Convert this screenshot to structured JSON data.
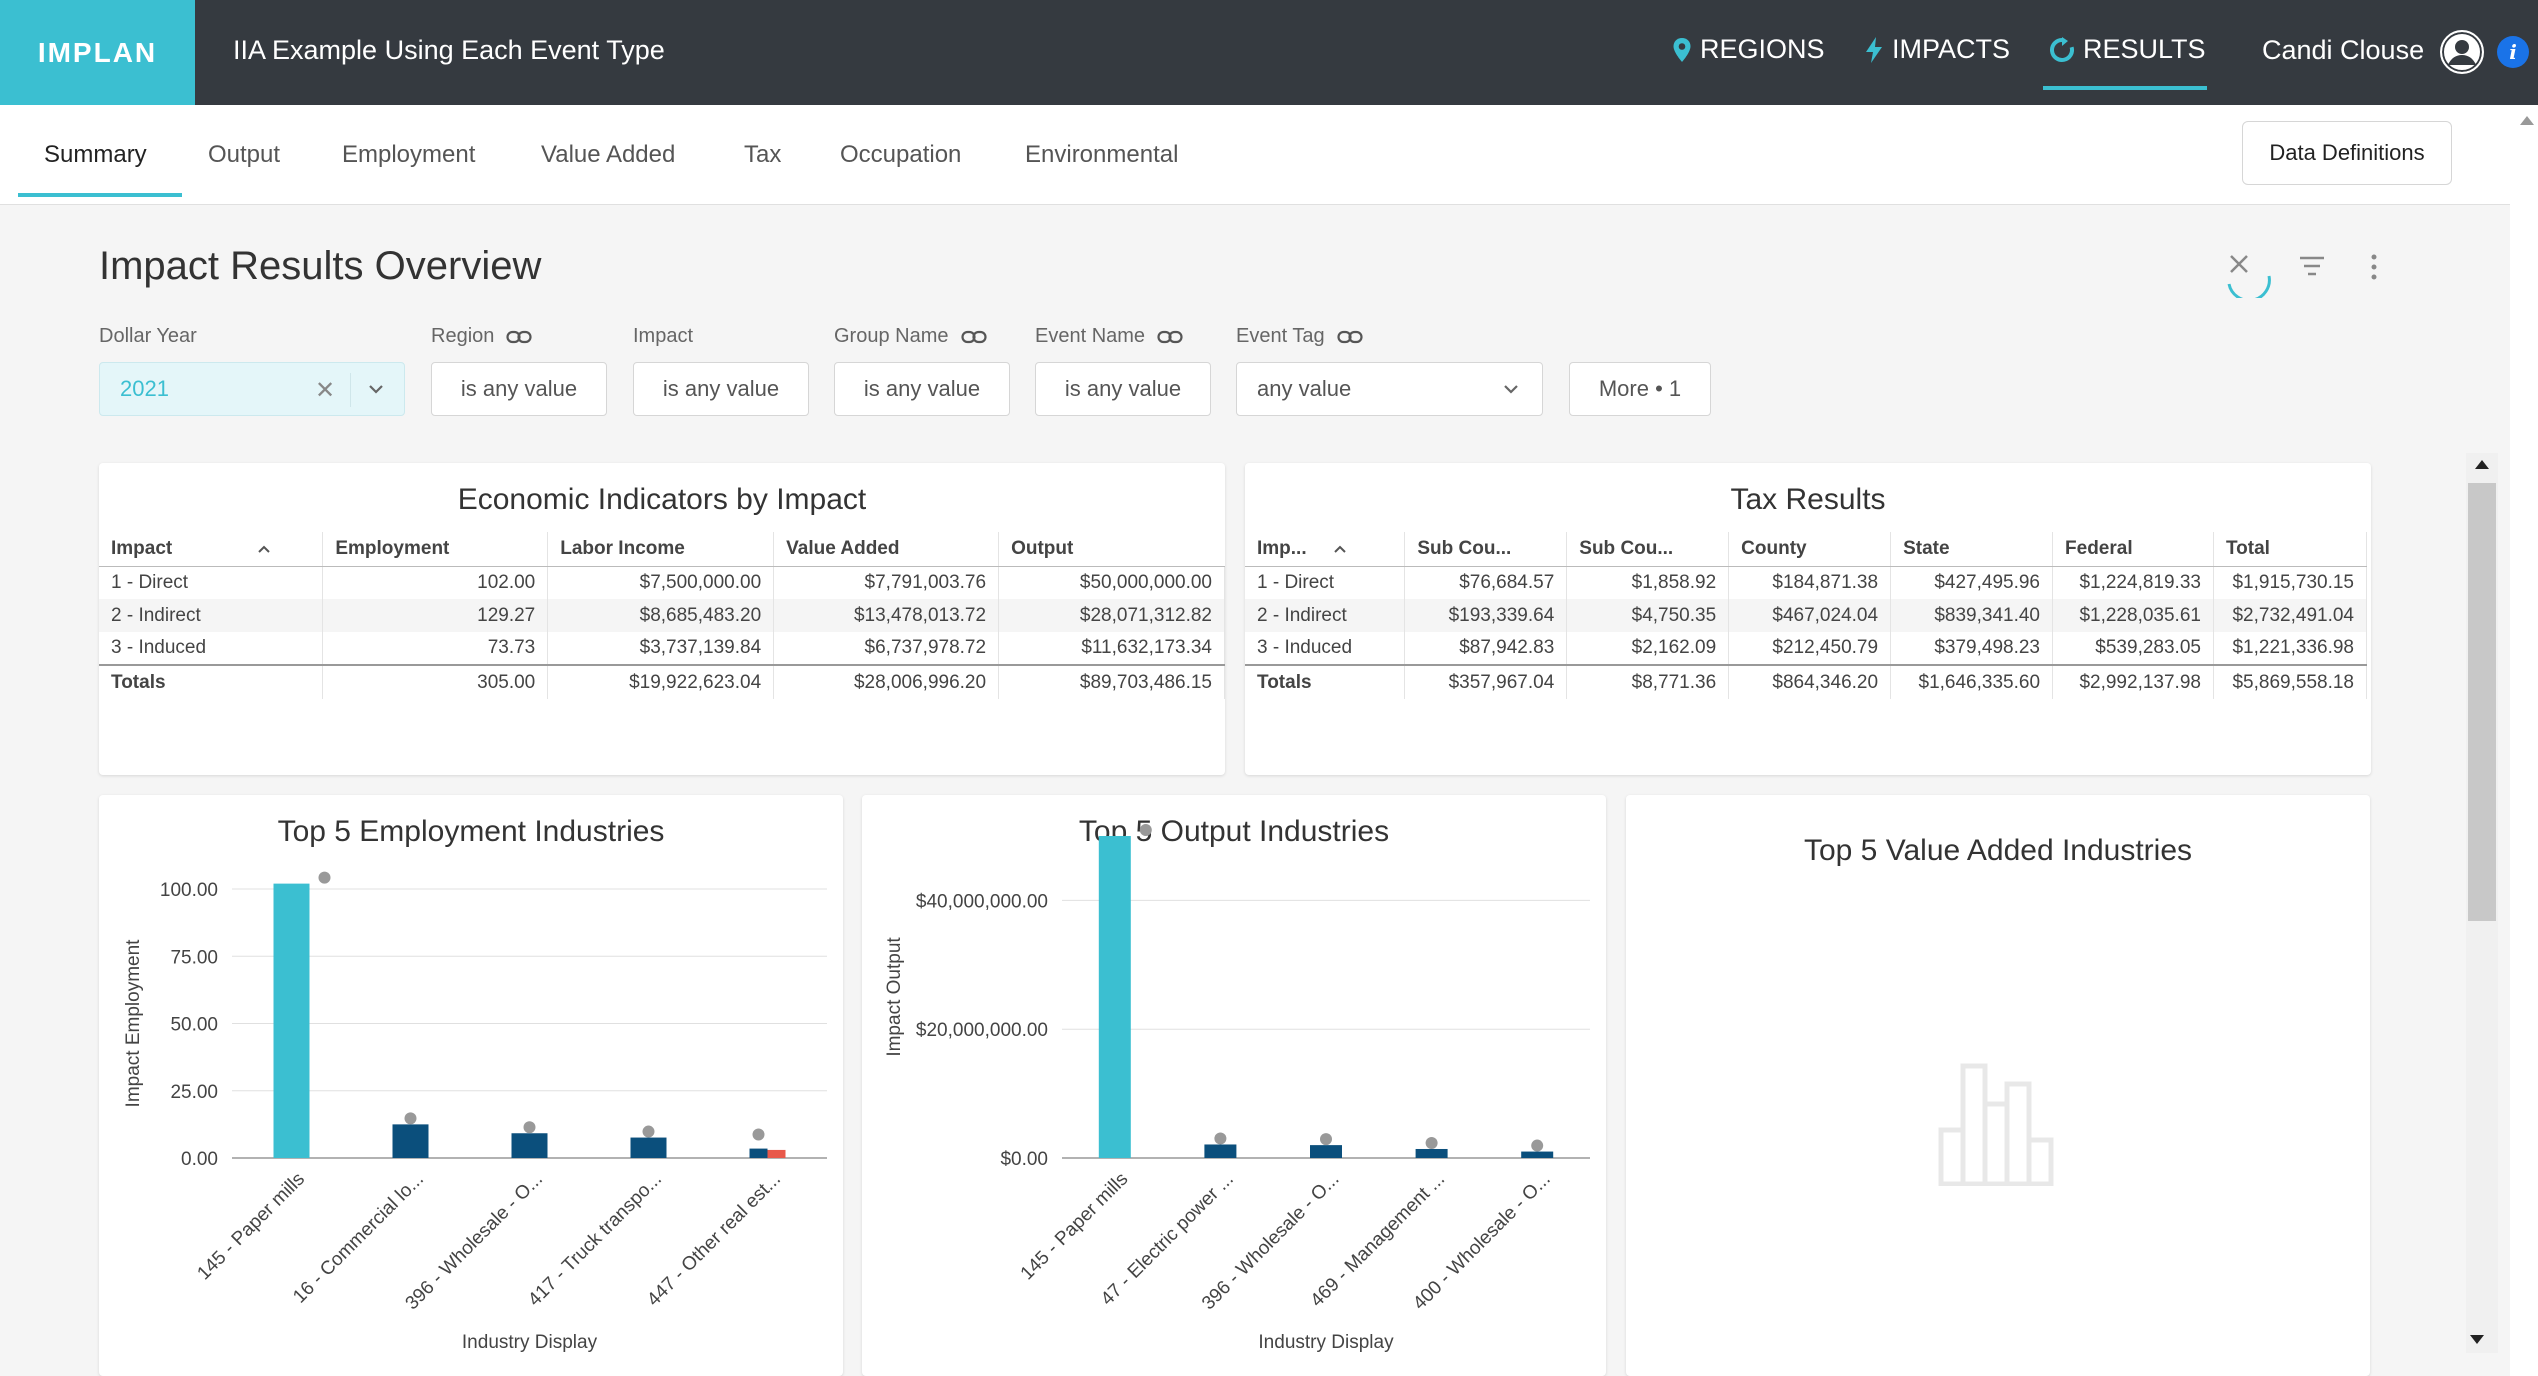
{
  "app": {
    "logo": "IMPLAN",
    "project_title": "IIA Example Using Each Event Type",
    "nav": [
      {
        "label": "REGIONS",
        "icon": "map-pin-icon"
      },
      {
        "label": "IMPACTS",
        "icon": "lightning-icon"
      },
      {
        "label": "RESULTS",
        "icon": "refresh-icon"
      }
    ],
    "user_name": "Candi Clouse",
    "info_glyph": "i"
  },
  "tabs": {
    "items": [
      "Summary",
      "Output",
      "Employment",
      "Value Added",
      "Tax",
      "Occupation",
      "Environmental"
    ],
    "active": "Summary",
    "data_definitions": "Data Definitions"
  },
  "dashboard": {
    "title": "Impact Results Overview",
    "filters": {
      "dollar_year": {
        "label": "Dollar Year",
        "value": "2021"
      },
      "region": {
        "label": "Region",
        "value": "is any value"
      },
      "impact": {
        "label": "Impact",
        "value": "is any value"
      },
      "group_name": {
        "label": "Group Name",
        "value": "is any value"
      },
      "event_name": {
        "label": "Event Name",
        "value": "is any value"
      },
      "event_tag": {
        "label": "Event Tag",
        "value": "any value"
      },
      "more": "More • 1"
    }
  },
  "economic_table": {
    "title": "Economic Indicators by Impact",
    "columns": [
      "Impact",
      "Employment",
      "Labor Income",
      "Value Added",
      "Output"
    ],
    "rows": [
      [
        "1 - Direct",
        "102.00",
        "$7,500,000.00",
        "$7,791,003.76",
        "$50,000,000.00"
      ],
      [
        "2 - Indirect",
        "129.27",
        "$8,685,483.20",
        "$13,478,013.72",
        "$28,071,312.82"
      ],
      [
        "3 - Induced",
        "73.73",
        "$3,737,139.84",
        "$6,737,978.72",
        "$11,632,173.34"
      ]
    ],
    "totals": [
      "Totals",
      "305.00",
      "$19,922,623.04",
      "$28,006,996.20",
      "$89,703,486.15"
    ]
  },
  "tax_table": {
    "title": "Tax Results",
    "columns": [
      "Imp...",
      "Sub Cou...",
      "Sub Cou...",
      "County",
      "State",
      "Federal",
      "Total"
    ],
    "rows": [
      [
        "1 - Direct",
        "$76,684.57",
        "$1,858.92",
        "$184,871.38",
        "$427,495.96",
        "$1,224,819.33",
        "$1,915,730.15"
      ],
      [
        "2 - Indirect",
        "$193,339.64",
        "$4,750.35",
        "$467,024.04",
        "$839,341.40",
        "$1,228,035.61",
        "$2,732,491.04"
      ],
      [
        "3 - Induced",
        "$87,942.83",
        "$2,162.09",
        "$212,450.79",
        "$379,498.23",
        "$539,283.05",
        "$1,221,336.98"
      ]
    ],
    "totals": [
      "Totals",
      "$357,967.04",
      "$8,771.36",
      "$864,346.20",
      "$1,646,335.60",
      "$2,992,137.98",
      "$5,869,558.18"
    ]
  },
  "chart_data": [
    {
      "type": "bar",
      "title": "Top 5 Employment Industries",
      "xlabel": "Industry Display",
      "ylabel": "Impact Employment",
      "categories": [
        "145 - Paper mills",
        "16 - Commercial lo...",
        "396 - Wholesale - O...",
        "417 - Truck transpo...",
        "447 - Other real est..."
      ],
      "yticks": [
        "0.00",
        "25.00",
        "50.00",
        "75.00",
        "100.00"
      ],
      "ylim": [
        0,
        100
      ],
      "series": [
        {
          "values": [
            102,
            0,
            0,
            0,
            0
          ],
          "color": "#3bbfd1"
        },
        {
          "values": [
            0,
            12.5,
            9.2,
            7.6,
            3.5
          ],
          "color": "#0b4f7c"
        },
        {
          "values": [
            0,
            0,
            0,
            0,
            3.0
          ],
          "color": "#e8584a"
        }
      ],
      "totals": [
        102,
        12.5,
        9.2,
        7.6,
        6.5
      ]
    },
    {
      "type": "bar",
      "title": "Top 5 Output Industries",
      "xlabel": "Industry Display",
      "ylabel": "Impact Output",
      "categories": [
        "145 - Paper mills",
        "47 - Electric power ...",
        "396 - Wholesale - O...",
        "469 - Management ...",
        "400 - Wholesale - O..."
      ],
      "yticks": [
        "$0.00",
        "$20,000,000.00",
        "$40,000,000.00"
      ],
      "ylim": [
        0,
        50000000
      ],
      "series": [
        {
          "values": [
            50000000,
            0,
            0,
            0,
            0
          ],
          "color": "#3bbfd1"
        },
        {
          "values": [
            0,
            2100000,
            2000000,
            1400000,
            1000000
          ],
          "color": "#0b4f7c"
        }
      ],
      "totals": [
        50000000,
        2100000,
        2000000,
        1400000,
        1000000
      ]
    },
    {
      "type": "bar",
      "title": "Top 5 Value Added Industries",
      "categories": [],
      "series": []
    }
  ]
}
